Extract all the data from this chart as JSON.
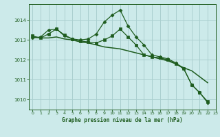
{
  "title": "Graphe pression niveau de la mer (hPa)",
  "background_color": "#cceaea",
  "grid_color": "#aacfcf",
  "line_color": "#1e5c1e",
  "xlim": [
    -0.5,
    23
  ],
  "ylim": [
    1009.5,
    1014.8
  ],
  "yticks": [
    1010,
    1011,
    1012,
    1013,
    1014
  ],
  "xticks": [
    0,
    1,
    2,
    3,
    4,
    5,
    6,
    7,
    8,
    9,
    10,
    11,
    12,
    13,
    14,
    15,
    16,
    17,
    18,
    19,
    20,
    21,
    22,
    23
  ],
  "series": [
    {
      "x": [
        0,
        1,
        2,
        3,
        4,
        5,
        6,
        7,
        8,
        9,
        10,
        11,
        12,
        13,
        14,
        15,
        16,
        17,
        18,
        19,
        20,
        21,
        22,
        23
      ],
      "y": [
        1013.1,
        1013.15,
        1013.5,
        1013.55,
        1013.2,
        1013.05,
        1013.0,
        1013.05,
        1013.3,
        1013.9,
        1014.25,
        1014.5,
        1013.7,
        1013.15,
        1012.75,
        1012.25,
        1012.15,
        1012.05,
        1011.85,
        1011.55,
        1010.75,
        1010.35,
        1009.85,
        null
      ],
      "marker": "D",
      "markersize": 2.5,
      "linewidth": 0.9
    },
    {
      "x": [
        0,
        1,
        2,
        3,
        4,
        5,
        6,
        7,
        8,
        9,
        10,
        11,
        12,
        13,
        14,
        15,
        16,
        17,
        18,
        19,
        20,
        21,
        22,
        23
      ],
      "y": [
        1013.2,
        1013.1,
        1013.3,
        1013.55,
        1013.25,
        1013.05,
        1012.95,
        1012.9,
        1012.85,
        1013.0,
        1013.2,
        1013.55,
        1013.15,
        1012.75,
        1012.25,
        1012.15,
        1012.1,
        1012.0,
        1011.8,
        1011.55,
        1010.75,
        1010.35,
        1009.9,
        null
      ],
      "marker": "s",
      "markersize": 2.5,
      "linewidth": 0.9
    },
    {
      "x": [
        0,
        1,
        2,
        3,
        4,
        5,
        6,
        7,
        8,
        9,
        10,
        11,
        12,
        13,
        14,
        15,
        16,
        17,
        18,
        19,
        20,
        21,
        22,
        23
      ],
      "y": [
        1013.15,
        1013.1,
        1013.1,
        1013.15,
        1013.05,
        1013.0,
        1012.9,
        1012.85,
        1012.75,
        1012.65,
        1012.6,
        1012.55,
        1012.45,
        1012.35,
        1012.25,
        1012.15,
        1012.05,
        1011.95,
        1011.8,
        1011.6,
        1011.45,
        1011.15,
        1010.85,
        null
      ],
      "marker": null,
      "markersize": 0,
      "linewidth": 1.1
    }
  ]
}
